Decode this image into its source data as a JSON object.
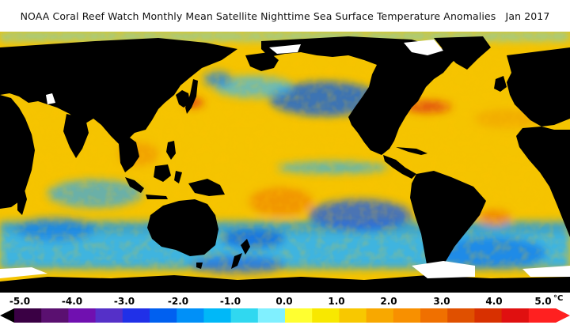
{
  "header": {
    "title": "NOAA Coral Reef Watch Monthly Mean Satellite Nighttime Sea Surface Temperature Anomalies",
    "date": "Jan 2017"
  },
  "map": {
    "projection": "equirectangular, centered on Pacific",
    "land_color": "#000000",
    "ice_color": "#ffffff",
    "ocean_anomaly_dominant": "#f5c800"
  },
  "legend": {
    "ticks": [
      "-5.0",
      "-4.0",
      "-3.0",
      "-2.0",
      "-1.0",
      "0.0",
      "1.0",
      "2.0",
      "3.0",
      "4.0",
      "5.0"
    ],
    "unit": "°C",
    "colors": [
      "#3a0044",
      "#5a1070",
      "#7010b0",
      "#5530c8",
      "#2030e8",
      "#0060f0",
      "#0090f8",
      "#00b8f8",
      "#30d8f0",
      "#80f0ff",
      "#ffff30",
      "#f8e800",
      "#f8c800",
      "#f8a800",
      "#f89000",
      "#f07000",
      "#e05000",
      "#d83000",
      "#e01010",
      "#ff2020"
    ]
  }
}
